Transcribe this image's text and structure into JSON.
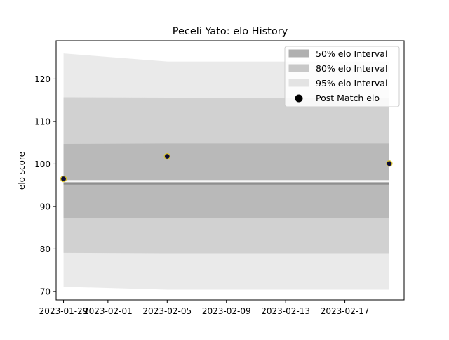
{
  "chart_data": {
    "type": "area",
    "title": "Peceli Yato: elo History",
    "xlabel": "",
    "ylabel": "elo score",
    "x": [
      "2023-01-29",
      "2023-02-05",
      "2023-02-20"
    ],
    "xlim": [
      "2023-01-28T12:00",
      "2023-02-21T00:00"
    ],
    "ylim": [
      68,
      129
    ],
    "xticks": [
      "2023-01-29",
      "2023-02-01",
      "2023-02-05",
      "2023-02-09",
      "2023-02-13",
      "2023-02-17"
    ],
    "yticks": [
      70,
      80,
      90,
      100,
      110,
      120
    ],
    "grid": false,
    "legend_position": "top-right",
    "series": [
      {
        "name": "50% elo Interval",
        "kind": "band",
        "color": "#b0b0b0",
        "lower": [
          87.2,
          87.3,
          87.3
        ],
        "upper": [
          104.7,
          104.8,
          104.8
        ]
      },
      {
        "name": "80% elo Interval",
        "kind": "band",
        "color": "#c8c8c8",
        "lower": [
          79.1,
          79.0,
          79.0
        ],
        "upper": [
          115.7,
          115.6,
          115.6
        ]
      },
      {
        "name": "95% elo Interval",
        "kind": "band",
        "color": "#e3e3e3",
        "lower": [
          71.1,
          70.4,
          70.4
        ],
        "upper": [
          126.0,
          124.1,
          124.1
        ]
      },
      {
        "name": "Post Match elo",
        "kind": "scatter",
        "color": "#0a0a3a",
        "edge": "#d4c030",
        "values": [
          96.5,
          101.8,
          100.1
        ]
      }
    ],
    "mean_line": {
      "values": [
        96.0,
        96.0,
        96.0
      ],
      "color": "#ffffff"
    },
    "dark_line": {
      "values": [
        95.3,
        95.3,
        95.3
      ],
      "color": "#888888"
    }
  }
}
